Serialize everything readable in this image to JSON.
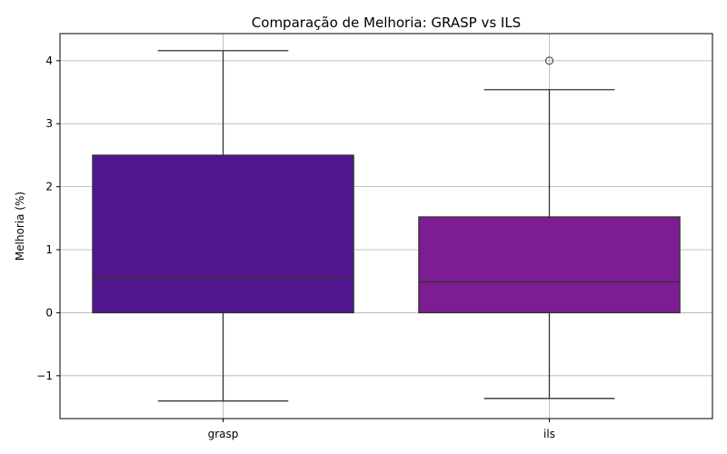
{
  "chart_data": {
    "type": "box",
    "title": "Comparação de Melhoria: GRASP vs ILS",
    "xlabel": "",
    "ylabel": "Melhoria (%)",
    "ylim": [
      -1.68,
      4.43
    ],
    "yticks": [
      -1,
      0,
      1,
      2,
      3,
      4
    ],
    "ytick_labels": [
      "−1",
      "0",
      "1",
      "2",
      "3",
      "4"
    ],
    "grid": true,
    "categories": [
      "grasp",
      "ils"
    ],
    "boxes": [
      {
        "category": "grasp",
        "color": "#52168f",
        "whisker_low": -1.4,
        "q1": 0.0,
        "median": 0.54,
        "q3": 2.5,
        "whisker_high": 4.16,
        "outliers": []
      },
      {
        "category": "ils",
        "color": "#7d1c93",
        "whisker_low": -1.36,
        "q1": 0.0,
        "median": 0.49,
        "q3": 1.52,
        "whisker_high": 3.54,
        "outliers": [
          4.0
        ]
      }
    ]
  }
}
